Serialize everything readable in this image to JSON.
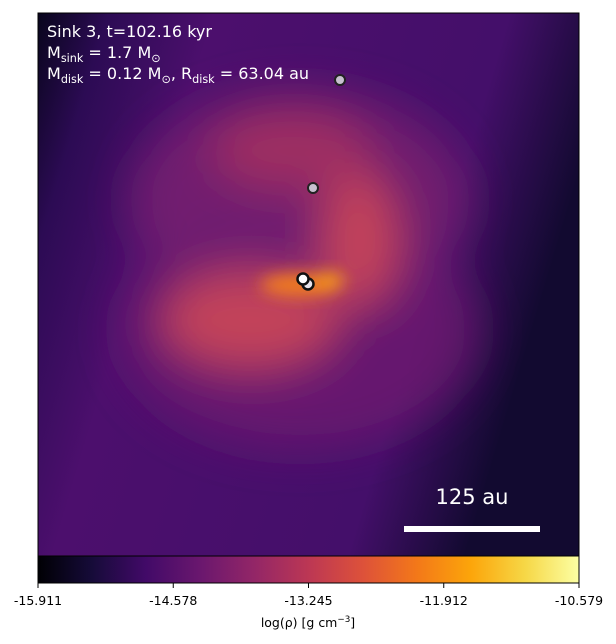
{
  "chart_data": {
    "type": "image",
    "annotations": [
      [
        "Sink 3, t=102.16 kyr"
      ],
      [
        "M",
        "sink",
        " = 1.7 M",
        "⊙"
      ],
      [
        "M",
        "disk",
        " = 0.12 M",
        "⊙",
        ", R",
        "disk",
        " = 63.04 au"
      ]
    ],
    "scale_bar_label": "125 au",
    "colorbar": {
      "colormap": "inferno",
      "clim": [
        -15.911,
        -10.579
      ],
      "ticks": [
        -15.911,
        -14.578,
        -13.245,
        -11.912,
        -10.579
      ],
      "label": [
        "log(ρ) [g cm",
        "−3",
        "]"
      ]
    }
  }
}
